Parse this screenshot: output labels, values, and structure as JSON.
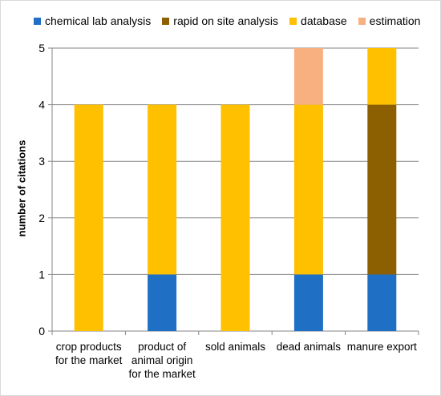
{
  "chart_data": {
    "type": "bar",
    "stacked": true,
    "title": "",
    "xlabel": "",
    "ylabel": "number of citations",
    "ylim": [
      0,
      5
    ],
    "yticks": [
      "0",
      "1",
      "2",
      "3",
      "4",
      "5"
    ],
    "grid": true,
    "legend_position": "top",
    "categories": [
      "crop products for the market",
      "product of animal origin for the market",
      "sold animals",
      "dead animals",
      "manure export"
    ],
    "category_lines": [
      [
        "crop products",
        "for the market"
      ],
      [
        "product of",
        "animal origin",
        "for the market"
      ],
      [
        "sold animals"
      ],
      [
        "dead animals"
      ],
      [
        "manure export"
      ]
    ],
    "series": [
      {
        "name": "chemical lab analysis",
        "color": "#1f6fc5",
        "values": [
          0,
          1,
          0,
          1,
          1
        ]
      },
      {
        "name": "rapid on site analysis",
        "color": "#8c6000",
        "values": [
          0,
          0,
          0,
          0,
          3
        ]
      },
      {
        "name": "database",
        "color": "#ffc000",
        "values": [
          4,
          3,
          4,
          3,
          1
        ]
      },
      {
        "name": "estimation",
        "color": "#f9b081",
        "values": [
          0,
          0,
          0,
          1,
          0
        ]
      }
    ]
  }
}
